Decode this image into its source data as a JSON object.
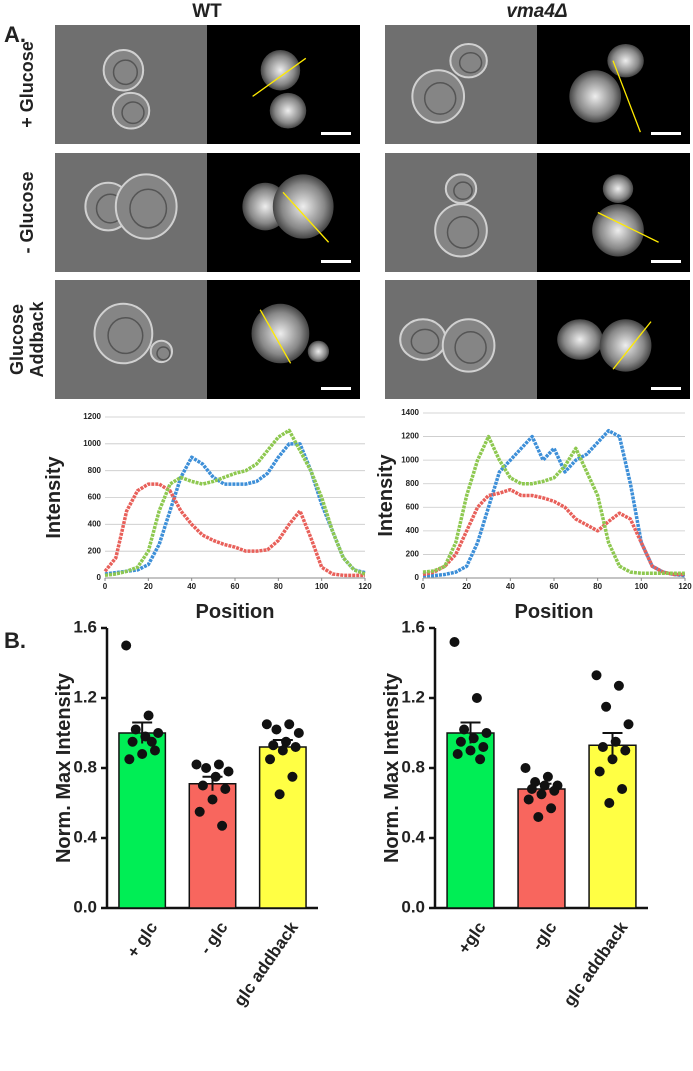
{
  "figure": {
    "panel_labels": [
      "A.",
      "B."
    ],
    "columns": [
      "WT",
      "vma4Δ"
    ],
    "rows": [
      {
        "lines": [
          "+ Glucose"
        ]
      },
      {
        "lines": [
          "- Glucose"
        ]
      },
      {
        "lines": [
          "Glucose",
          "Addback"
        ]
      }
    ]
  },
  "chart_data": [
    {
      "type": "line",
      "x_label": "Position",
      "y_label": "Intensity",
      "x": [
        0,
        5,
        10,
        15,
        20,
        25,
        30,
        35,
        40,
        45,
        50,
        55,
        60,
        65,
        70,
        75,
        80,
        85,
        90,
        95,
        100,
        105,
        110,
        115,
        120
      ],
      "xlim": [
        0,
        120
      ],
      "xticks": [
        0,
        20,
        40,
        60,
        80,
        100,
        120
      ],
      "ylim": [
        0,
        1200
      ],
      "yticks": [
        0,
        200,
        400,
        600,
        800,
        1000,
        1200
      ],
      "grid": true,
      "series": [
        {
          "color": "#3d8fd8",
          "values": [
            30,
            40,
            50,
            60,
            100,
            250,
            500,
            750,
            900,
            850,
            750,
            700,
            700,
            700,
            720,
            780,
            900,
            1000,
            1000,
            800,
            550,
            350,
            150,
            60,
            40
          ]
        },
        {
          "color": "#e8605a",
          "values": [
            50,
            150,
            500,
            650,
            700,
            700,
            650,
            500,
            400,
            320,
            280,
            250,
            230,
            200,
            200,
            210,
            280,
            400,
            500,
            300,
            80,
            30,
            20,
            20,
            20
          ]
        },
        {
          "color": "#8ec850",
          "values": [
            20,
            30,
            50,
            80,
            200,
            500,
            700,
            750,
            720,
            700,
            720,
            750,
            780,
            800,
            850,
            950,
            1050,
            1100,
            950,
            800,
            600,
            350,
            150,
            60,
            30
          ]
        }
      ]
    },
    {
      "type": "line",
      "x_label": "Position",
      "y_label": "Intensity",
      "x": [
        0,
        5,
        10,
        15,
        20,
        25,
        30,
        35,
        40,
        45,
        50,
        55,
        60,
        65,
        70,
        75,
        80,
        85,
        90,
        95,
        100,
        105,
        110,
        115,
        120
      ],
      "xlim": [
        0,
        120
      ],
      "xticks": [
        0,
        20,
        40,
        60,
        80,
        100,
        120
      ],
      "ylim": [
        0,
        1400
      ],
      "yticks": [
        0,
        200,
        400,
        600,
        800,
        1000,
        1200,
        1400
      ],
      "grid": true,
      "series": [
        {
          "color": "#3d8fd8",
          "values": [
            20,
            20,
            30,
            50,
            100,
            300,
            600,
            900,
            1000,
            1100,
            1200,
            1000,
            1100,
            900,
            1000,
            1050,
            1150,
            1250,
            1200,
            800,
            300,
            100,
            50,
            30,
            20
          ]
        },
        {
          "color": "#e8605a",
          "values": [
            30,
            50,
            100,
            200,
            400,
            600,
            700,
            720,
            750,
            700,
            700,
            680,
            650,
            600,
            500,
            450,
            400,
            480,
            550,
            500,
            300,
            100,
            50,
            30,
            30
          ]
        },
        {
          "color": "#8ec850",
          "values": [
            50,
            60,
            100,
            300,
            700,
            1000,
            1200,
            1000,
            850,
            800,
            800,
            820,
            850,
            950,
            1100,
            900,
            700,
            300,
            100,
            50,
            40,
            40,
            40,
            40,
            40
          ]
        }
      ]
    },
    {
      "type": "bar",
      "y_label": "Norm. Max Intensity",
      "categories": [
        "+ glc",
        "- glc",
        "glc addback"
      ],
      "values": [
        1.0,
        0.71,
        0.92
      ],
      "errors": [
        0.06,
        0.04,
        0.04
      ],
      "colors": [
        "#00ee55",
        "#f8665e",
        "#ffff44"
      ],
      "points": [
        [
          1.5,
          1.1,
          1.02,
          1.0,
          0.98,
          0.95,
          0.9,
          0.88,
          0.85,
          0.95
        ],
        [
          0.82,
          0.82,
          0.8,
          0.78,
          0.75,
          0.7,
          0.68,
          0.62,
          0.55,
          0.47
        ],
        [
          1.05,
          1.05,
          1.02,
          1.0,
          0.95,
          0.93,
          0.92,
          0.9,
          0.85,
          0.75,
          0.65
        ]
      ],
      "ylim": [
        0,
        1.6
      ],
      "yticks": [
        {
          "value": 0,
          "label": "0.0"
        },
        0.4,
        0.8,
        1.2,
        1.6
      ]
    },
    {
      "type": "bar",
      "y_label": "Norm. Max Intensity",
      "categories": [
        "+glc",
        "-glc",
        "glc addback"
      ],
      "values": [
        1.0,
        0.68,
        0.93
      ],
      "errors": [
        0.06,
        0.03,
        0.07
      ],
      "colors": [
        "#00ee55",
        "#f8665e",
        "#ffff44"
      ],
      "points": [
        [
          1.52,
          1.2,
          1.02,
          1.0,
          0.97,
          0.95,
          0.92,
          0.9,
          0.88,
          0.85
        ],
        [
          0.8,
          0.75,
          0.72,
          0.7,
          0.7,
          0.68,
          0.67,
          0.65,
          0.62,
          0.57,
          0.52
        ],
        [
          1.33,
          1.27,
          1.15,
          1.05,
          0.95,
          0.92,
          0.9,
          0.85,
          0.78,
          0.68,
          0.6
        ]
      ],
      "ylim": [
        0,
        1.6
      ],
      "yticks": [
        {
          "value": 0,
          "label": "0.0"
        },
        0.4,
        0.8,
        1.2,
        1.6
      ]
    }
  ]
}
